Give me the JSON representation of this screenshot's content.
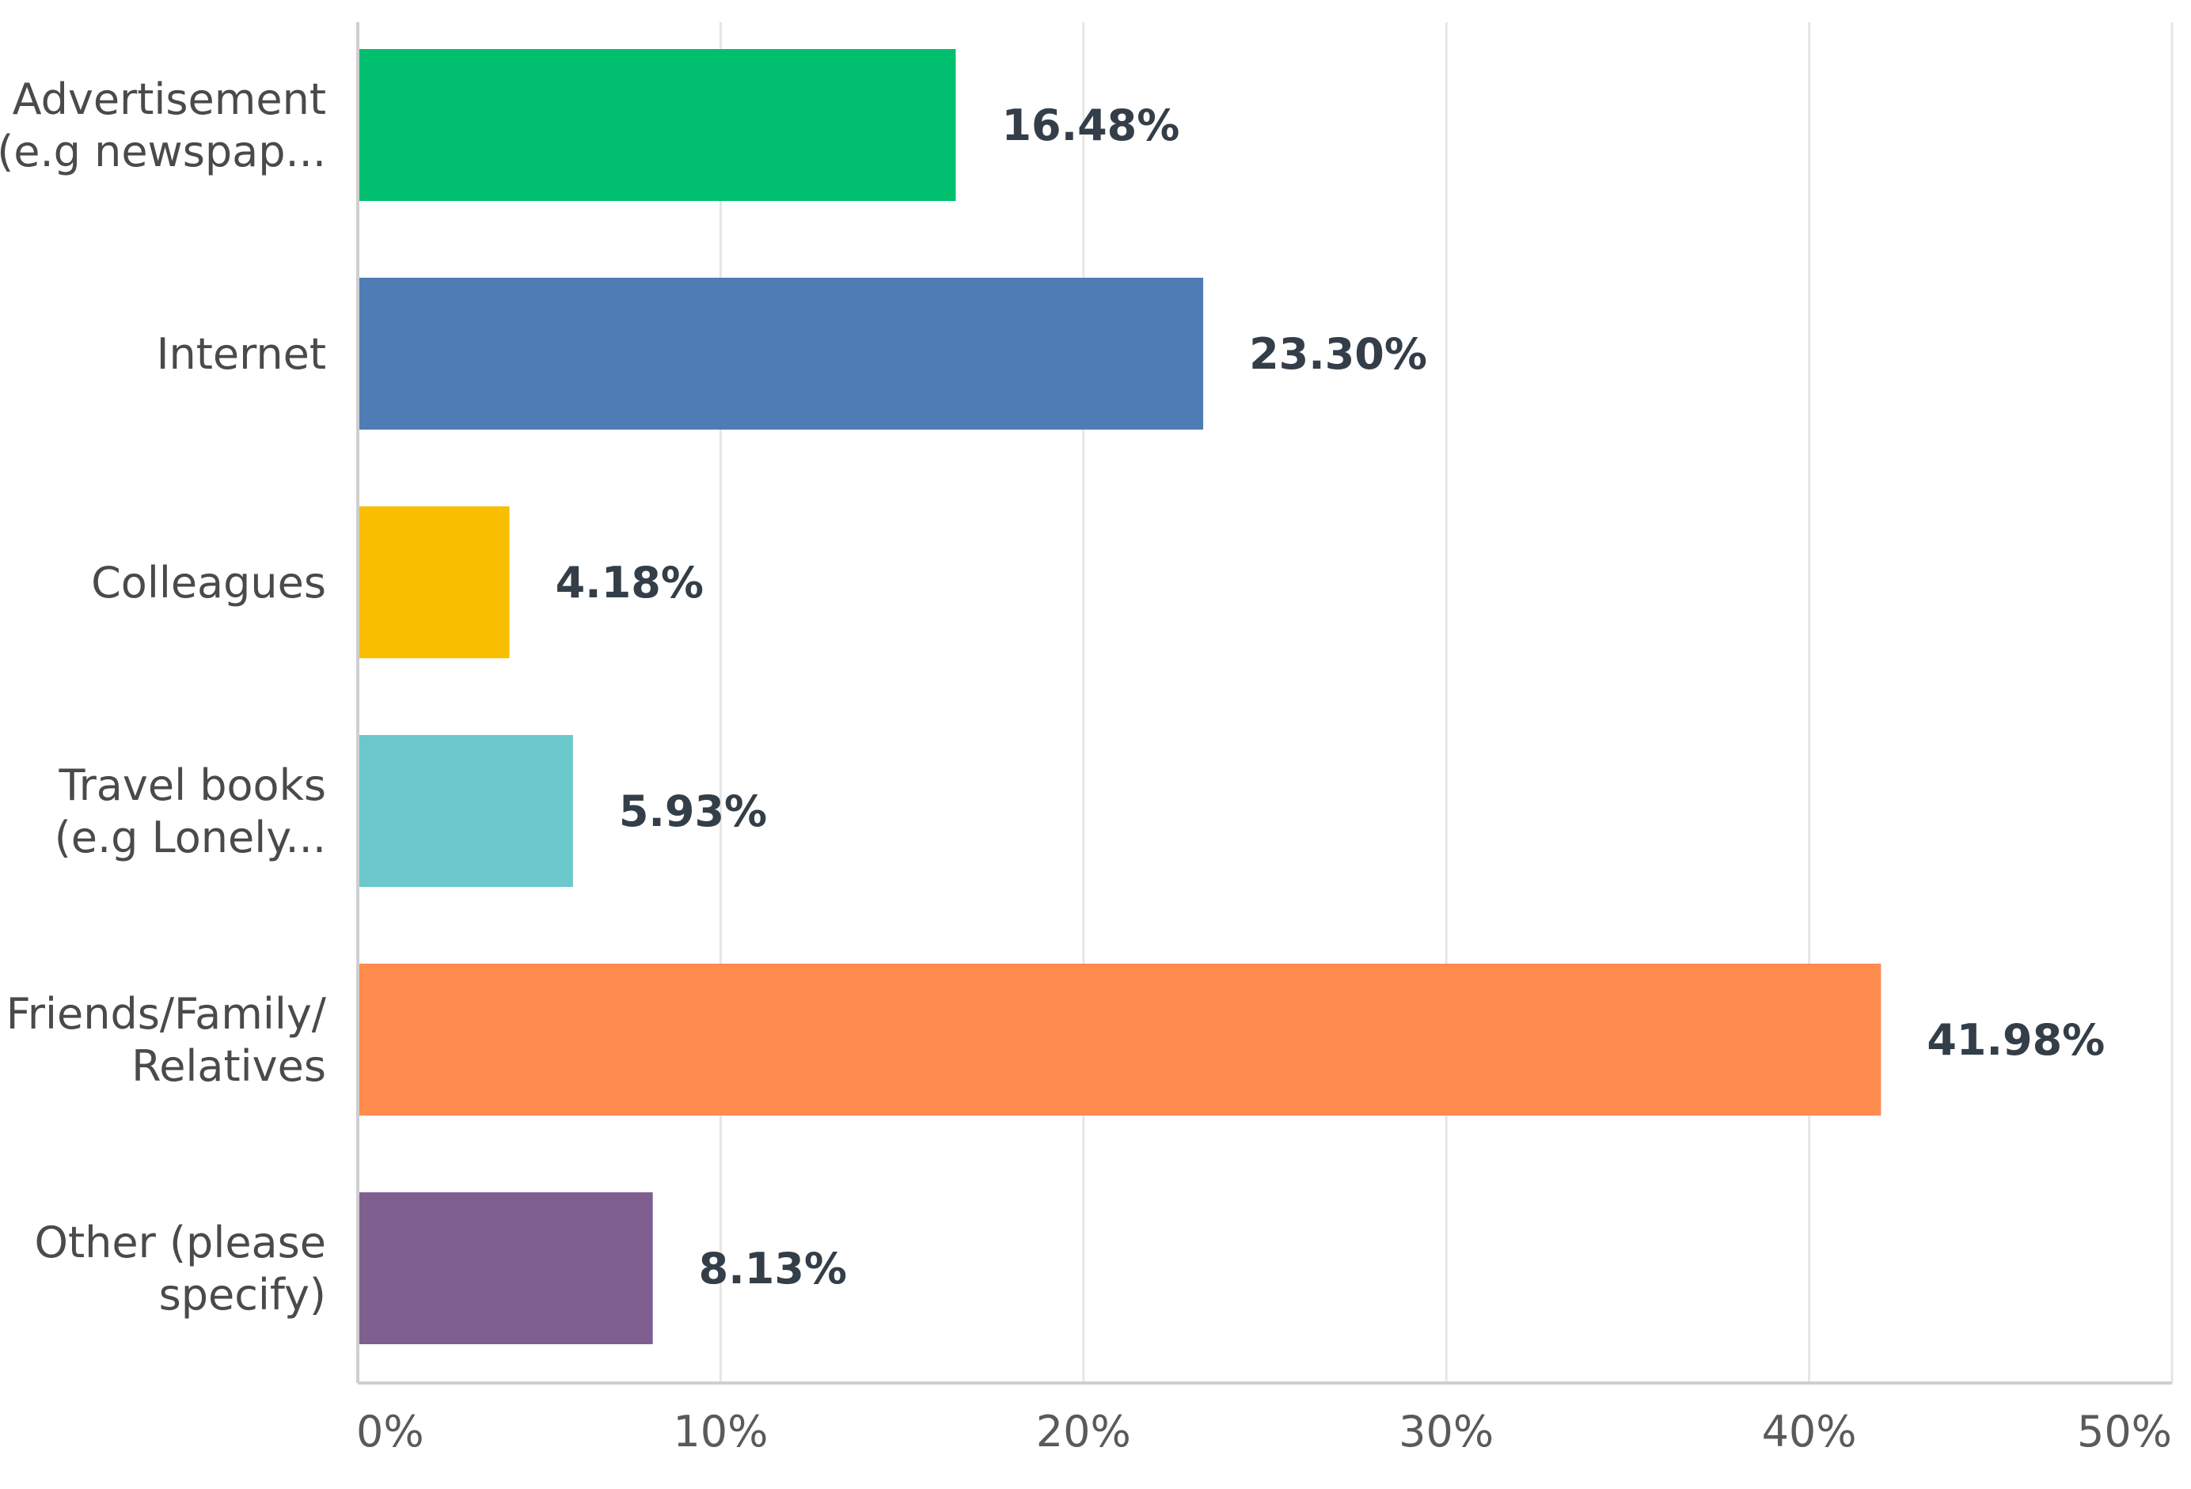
{
  "chart_data": {
    "type": "bar",
    "orientation": "horizontal",
    "title": "",
    "xlabel": "",
    "ylabel": "",
    "xlim": [
      0,
      50
    ],
    "x_ticks": [
      "0%",
      "10%",
      "20%",
      "30%",
      "40%",
      "50%"
    ],
    "grid": true,
    "legend": "none",
    "categories": [
      [
        "Advertisement",
        "(e.g newspap..."
      ],
      [
        "Internet"
      ],
      [
        "Colleagues"
      ],
      [
        "Travel books",
        "(e.g Lonely..."
      ],
      [
        "Friends/Family/",
        "Relatives"
      ],
      [
        "Other (please",
        "specify)"
      ]
    ],
    "values": [
      16.48,
      23.3,
      4.18,
      5.93,
      41.98,
      8.13
    ],
    "value_labels": [
      "16.48%",
      "23.30%",
      "4.18%",
      "5.93%",
      "41.98%",
      "8.13%"
    ],
    "colors": [
      "#00bf6f",
      "#507cb6",
      "#f9be00",
      "#6bc8cd",
      "#ff8b4f",
      "#7f5f90"
    ]
  }
}
